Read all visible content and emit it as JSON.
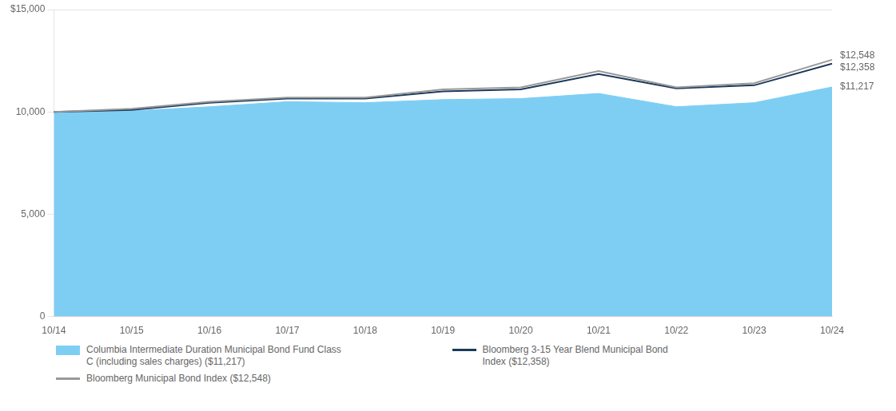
{
  "chart_data": {
    "type": "line",
    "categories": [
      "10/14",
      "10/15",
      "10/16",
      "10/17",
      "10/18",
      "10/19",
      "10/20",
      "10/21",
      "10/22",
      "10/23",
      "10/24"
    ],
    "series": [
      {
        "name": "Columbia Intermediate Duration Municipal Bond Fund Class\nC (including sales charges) ($11,217)",
        "type": "area",
        "color": "#7ECEF4",
        "values": [
          10000,
          10050,
          10250,
          10500,
          10450,
          10600,
          10650,
          10900,
          10250,
          10450,
          11217
        ]
      },
      {
        "name": "Bloomberg 3-15 Year Blend Municipal Bond\nIndex ($12,358)",
        "type": "line",
        "color": "#1B3A5C",
        "values": [
          10000,
          10100,
          10450,
          10650,
          10650,
          11000,
          11100,
          11850,
          11150,
          11300,
          12358
        ]
      },
      {
        "name": "Bloomberg Municipal Bond Index ($12,548)",
        "type": "line",
        "color": "#999999",
        "values": [
          10000,
          10150,
          10500,
          10700,
          10700,
          11100,
          11200,
          12000,
          11200,
          11400,
          12548
        ]
      }
    ],
    "ylim": [
      0,
      15000
    ],
    "yticks": [
      0,
      {
        "value": 5000,
        "label": "5,000"
      },
      {
        "value": 10000,
        "label": "10,000"
      },
      {
        "value": 15000,
        "label": "$15,000"
      }
    ],
    "grid": "y",
    "legend": "bottom",
    "annotations": [
      {
        "text": "$12,548",
        "x": "10/24",
        "y": 12548
      },
      {
        "text": "$12,358",
        "x": "10/24",
        "y": 12358
      },
      {
        "text": "$11,217",
        "x": "10/24",
        "y": 11217
      }
    ]
  }
}
